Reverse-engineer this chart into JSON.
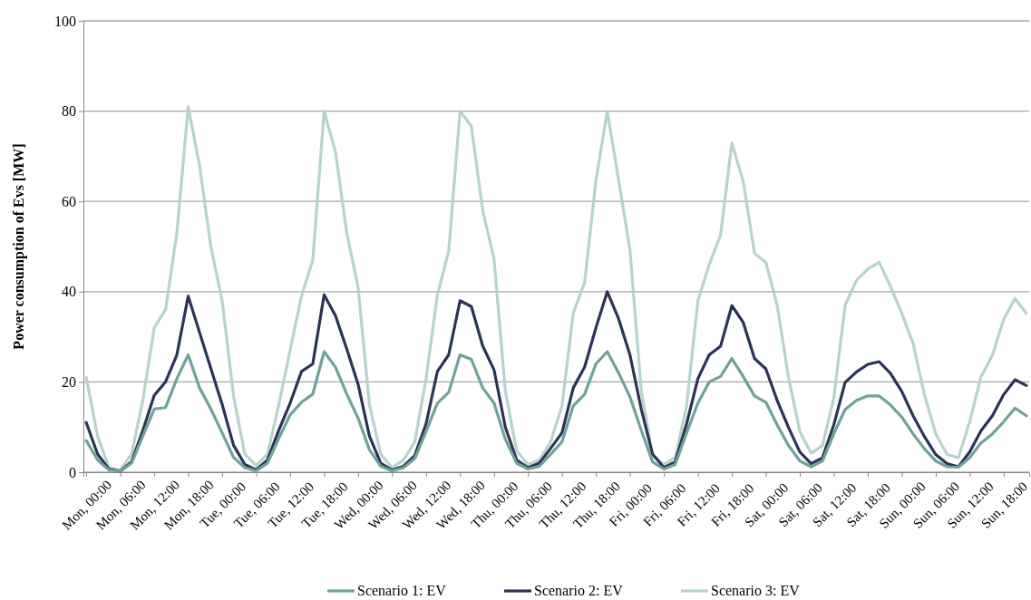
{
  "chart_data": {
    "type": "line",
    "ylabel": "Power consumption of Evs [MW]",
    "categories": [
      "Mon, 00:00",
      null,
      null,
      "Mon, 06:00",
      null,
      null,
      "Mon, 12:00",
      null,
      null,
      "Mon, 18:00",
      null,
      null,
      "Tue, 00:00",
      null,
      null,
      "Tue, 06:00",
      null,
      null,
      "Tue, 12:00",
      null,
      null,
      "Tue, 18:00",
      null,
      null,
      "Wed, 00:00",
      null,
      null,
      "Wed, 06:00",
      null,
      null,
      "Wed, 12:00",
      null,
      null,
      "Wed, 18:00",
      null,
      null,
      "Thu, 00:00",
      null,
      null,
      "Thu, 06:00",
      null,
      null,
      "Thu, 12:00",
      null,
      null,
      "Thu, 18:00",
      null,
      null,
      "Fri, 00:00",
      null,
      null,
      "Fri, 06:00",
      null,
      null,
      "Fri, 12:00",
      null,
      null,
      "Fri, 18:00",
      null,
      null,
      "Sat, 00:00",
      null,
      null,
      "Sat, 06:00",
      null,
      null,
      "Sat, 12:00",
      null,
      null,
      "Sat, 18:00",
      null,
      null,
      "Sun, 00:00",
      null,
      null,
      "Sun, 06:00",
      null,
      null,
      "Sun, 12:00",
      null,
      null,
      "Sun, 18:00",
      null,
      null
    ],
    "ylim": [
      0,
      100
    ],
    "yticks": [
      0,
      20,
      40,
      60,
      80,
      100
    ],
    "grid": "y",
    "legend": "bottom",
    "line_style": "solid",
    "marker": "none",
    "series": [
      {
        "name": "Scenario 1: EV",
        "color": "#6fa399",
        "values": [
          7,
          2.7,
          0.5,
          0.2,
          2,
          8,
          14,
          14.3,
          20.7,
          26,
          18.7,
          14,
          8.7,
          3.3,
          1,
          0.3,
          2,
          7.5,
          12.7,
          15.5,
          17.3,
          26.7,
          23.3,
          17.3,
          12,
          5,
          1.3,
          0.3,
          1,
          3,
          9,
          15.3,
          17.7,
          26,
          25,
          18.7,
          15.3,
          7.3,
          2,
          0.7,
          1.3,
          4,
          6.7,
          14.7,
          17.3,
          24,
          26.7,
          22,
          16.7,
          9.3,
          2.3,
          0.7,
          1.7,
          8.7,
          15.3,
          20,
          21.2,
          25.2,
          21.2,
          16.9,
          15.5,
          10.5,
          5.9,
          2.5,
          1.2,
          2.5,
          8.5,
          13.9,
          15.9,
          16.9,
          16.9,
          14.9,
          12.2,
          8.5,
          5.2,
          2.5,
          1.2,
          1.1,
          3.2,
          6.5,
          8.5,
          11.2,
          14.2,
          12.5
        ]
      },
      {
        "name": "Scenario 2: EV",
        "color": "#2a3457",
        "values": [
          11,
          4,
          0.7,
          0.2,
          2.3,
          9.3,
          17,
          20,
          26,
          39,
          31,
          23,
          15,
          6,
          1.7,
          0.5,
          2.7,
          9.3,
          15.3,
          22.3,
          24,
          39.3,
          34.7,
          27.3,
          19.5,
          8,
          2,
          0.5,
          1.3,
          3.7,
          10.7,
          22.3,
          26,
          38,
          36.7,
          28,
          22.7,
          10,
          2.7,
          1,
          2,
          5.3,
          8.7,
          18.7,
          23.3,
          32,
          40,
          34,
          26,
          14,
          4,
          1,
          2.3,
          10.7,
          20.7,
          26,
          27.9,
          36.9,
          33.2,
          25.2,
          22.9,
          15.9,
          9.9,
          4.5,
          1.9,
          3.2,
          10.5,
          19.9,
          22.2,
          23.9,
          24.5,
          21.9,
          17.9,
          12.5,
          7.9,
          3.9,
          1.9,
          1.2,
          4.5,
          9.2,
          12.5,
          17.2,
          20.5,
          19.2
        ]
      },
      {
        "name": "Scenario 3: EV",
        "color": "#b7d3ce",
        "values": [
          21,
          8,
          1,
          0.5,
          4,
          16,
          32,
          36,
          53,
          81,
          68,
          50,
          38,
          17,
          4,
          1.5,
          4,
          15,
          27,
          39,
          47,
          80,
          71,
          53,
          41,
          15,
          4,
          1,
          2.7,
          6.7,
          20.7,
          39.3,
          49,
          80,
          76.7,
          58,
          47.3,
          18,
          4.7,
          1.7,
          2.7,
          6.7,
          14.7,
          35.3,
          42,
          64.7,
          80,
          64.7,
          49.3,
          18,
          3.7,
          1.7,
          3.3,
          14.7,
          38,
          46,
          52.5,
          72.9,
          64.5,
          48.5,
          46.5,
          37,
          21,
          9,
          4.2,
          5.9,
          16.5,
          37,
          42.5,
          45,
          46.5,
          41.2,
          35.2,
          28.5,
          17.2,
          8.5,
          3.9,
          3.2,
          11.2,
          21.2,
          25.9,
          33.9,
          38.5,
          35.2
        ]
      }
    ]
  }
}
